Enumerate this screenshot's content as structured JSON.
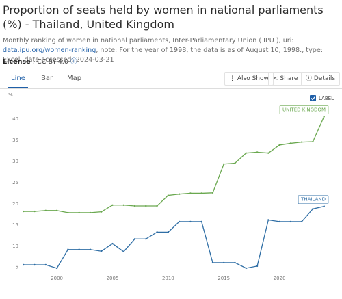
{
  "header": {
    "title": "Proportion of seats held by women in national parliaments (%) - Thailand, United Kingdom",
    "description": "Monthly ranking of women in national parliaments, Inter-Parliamentary Union ( IPU ), uri: ",
    "link": "data.ipu.org/women-ranking",
    "note": ", note: For the year of 1998, the data is as of August 10, 1998., type: Excel, date accessed: 2024-03-21",
    "license_label": "License",
    "license_sep": ":",
    "license_value": "CC BY-4.0"
  },
  "tabs": [
    "Line",
    "Bar",
    "Map"
  ],
  "buttons": [
    "Also Show",
    "Share",
    "Details"
  ],
  "label_toggle": "LABEL",
  "chart_data": {
    "type": "line",
    "y_unit": "%",
    "x": [
      1997,
      1998,
      1999,
      2000,
      2001,
      2002,
      2003,
      2004,
      2005,
      2006,
      2007,
      2008,
      2009,
      2010,
      2011,
      2012,
      2013,
      2014,
      2015,
      2016,
      2017,
      2018,
      2019,
      2020,
      2021,
      2022,
      2023,
      2024
    ],
    "series": [
      {
        "name": "UNITED KINGDOM",
        "color": "#6aa84f",
        "values": [
          18.2,
          18.2,
          18.4,
          18.4,
          17.9,
          17.9,
          17.9,
          18.1,
          19.7,
          19.7,
          19.5,
          19.5,
          19.5,
          22.0,
          22.3,
          22.5,
          22.5,
          22.6,
          29.4,
          29.6,
          32.0,
          32.2,
          32.0,
          33.9,
          34.3,
          34.6,
          34.7,
          40.6
        ]
      },
      {
        "name": "THAILAND",
        "color": "#2f6ea5",
        "values": [
          5.6,
          5.6,
          5.6,
          4.8,
          9.2,
          9.2,
          9.2,
          8.8,
          10.6,
          8.7,
          11.7,
          11.7,
          13.3,
          13.3,
          15.8,
          15.8,
          15.8,
          6.1,
          6.1,
          6.1,
          4.8,
          5.3,
          16.2,
          15.8,
          15.8,
          15.8,
          18.8,
          19.4
        ]
      }
    ],
    "xlim": [
      1996,
      2025
    ],
    "xticks": [
      2000,
      2005,
      2010,
      2015,
      2020
    ],
    "ylim": [
      3.5,
      41
    ],
    "yticks": [
      5,
      10,
      15,
      20,
      25,
      30,
      35,
      40
    ]
  }
}
